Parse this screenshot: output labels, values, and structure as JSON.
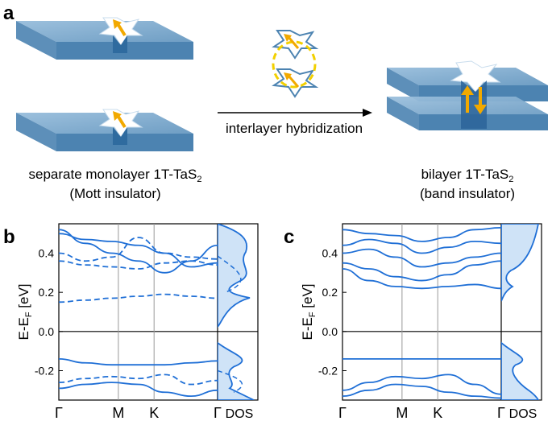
{
  "figure": {
    "panel_a": {
      "letter": "a",
      "arrow_label": "interlayer hybridization",
      "left_caption_line1": "separate monolayer 1T-TaS",
      "left_caption_sub": "2",
      "left_caption_line2": "(Mott insulator)",
      "right_caption_line1": "bilayer 1T-TaS",
      "right_caption_sub": "2",
      "right_caption_line2": "(band insulator)"
    },
    "panel_b": {
      "letter": "b",
      "ylabel_main": "E-E",
      "ylabel_sub": "F",
      "ylabel_unit": " [eV]",
      "yticks": [
        "0.4",
        "0.2",
        "0.0",
        "-0.2"
      ],
      "xticks": [
        "Γ",
        "M",
        "K",
        "Γ"
      ],
      "dos_label": "DOS"
    },
    "panel_c": {
      "letter": "c",
      "ylabel_main": "E-E",
      "ylabel_sub": "F",
      "ylabel_unit": " [eV]",
      "yticks": [
        "0.4",
        "0.2",
        "0.0",
        "-0.2"
      ],
      "xticks": [
        "Γ",
        "M",
        "K",
        "Γ"
      ],
      "dos_label": "DOS"
    }
  },
  "colors": {
    "band": "#1f6fd6",
    "slab": "#6f9ec4",
    "arrow": "#f2a900",
    "dos_fill": "#cfe3f7"
  },
  "chart_data": [
    {
      "type": "line",
      "panel": "b",
      "xlabel": "",
      "ylabel": "E-EF [eV]",
      "x_ticks": [
        "Γ",
        "M",
        "K",
        "Γ"
      ],
      "ylim": [
        -0.35,
        0.55
      ],
      "series": [
        {
          "style": "solid",
          "y": [
            0.52,
            0.45,
            0.4,
            0.36,
            0.3,
            0.36,
            0.44
          ]
        },
        {
          "style": "solid",
          "y": [
            0.5,
            0.47,
            0.46,
            0.44,
            0.4,
            0.33,
            0.35
          ]
        },
        {
          "style": "dashed",
          "y": [
            0.4,
            0.36,
            0.38,
            0.48,
            0.4,
            0.38,
            0.37
          ]
        },
        {
          "style": "dashed",
          "y": [
            0.36,
            0.34,
            0.33,
            0.32,
            0.35,
            0.36,
            0.34
          ]
        },
        {
          "style": "dashed",
          "y": [
            0.15,
            0.16,
            0.17,
            0.18,
            0.19,
            0.18,
            0.17
          ]
        },
        {
          "style": "solid",
          "y": [
            -0.14,
            -0.16,
            -0.17,
            -0.17,
            -0.17,
            -0.16,
            -0.15
          ]
        },
        {
          "style": "dashed",
          "y": [
            -0.26,
            -0.24,
            -0.23,
            -0.24,
            -0.22,
            -0.27,
            -0.25
          ]
        },
        {
          "style": "solid",
          "y": [
            -0.29,
            -0.27,
            -0.26,
            -0.27,
            -0.31,
            -0.33,
            -0.3
          ]
        }
      ]
    },
    {
      "type": "line",
      "panel": "c",
      "xlabel": "",
      "ylabel": "E-EF [eV]",
      "x_ticks": [
        "Γ",
        "M",
        "K",
        "Γ"
      ],
      "ylim": [
        -0.35,
        0.55
      ],
      "series": [
        {
          "style": "solid",
          "y": [
            0.52,
            0.5,
            0.49,
            0.46,
            0.48,
            0.52,
            0.53
          ]
        },
        {
          "style": "solid",
          "y": [
            0.44,
            0.47,
            0.45,
            0.4,
            0.43,
            0.46,
            0.45
          ]
        },
        {
          "style": "solid",
          "y": [
            0.4,
            0.42,
            0.38,
            0.33,
            0.35,
            0.38,
            0.4
          ]
        },
        {
          "style": "solid",
          "y": [
            0.35,
            0.32,
            0.28,
            0.26,
            0.29,
            0.34,
            0.36
          ]
        },
        {
          "style": "solid",
          "y": [
            0.32,
            0.26,
            0.23,
            0.22,
            0.23,
            0.24,
            0.22
          ]
        },
        {
          "style": "solid",
          "y": [
            -0.14,
            -0.14,
            -0.14,
            -0.14,
            -0.14,
            -0.14,
            -0.14
          ]
        },
        {
          "style": "solid",
          "y": [
            -0.3,
            -0.26,
            -0.23,
            -0.24,
            -0.22,
            -0.27,
            -0.32
          ]
        },
        {
          "style": "solid",
          "y": [
            -0.33,
            -0.3,
            -0.27,
            -0.28,
            -0.31,
            -0.33,
            -0.34
          ]
        }
      ]
    }
  ]
}
